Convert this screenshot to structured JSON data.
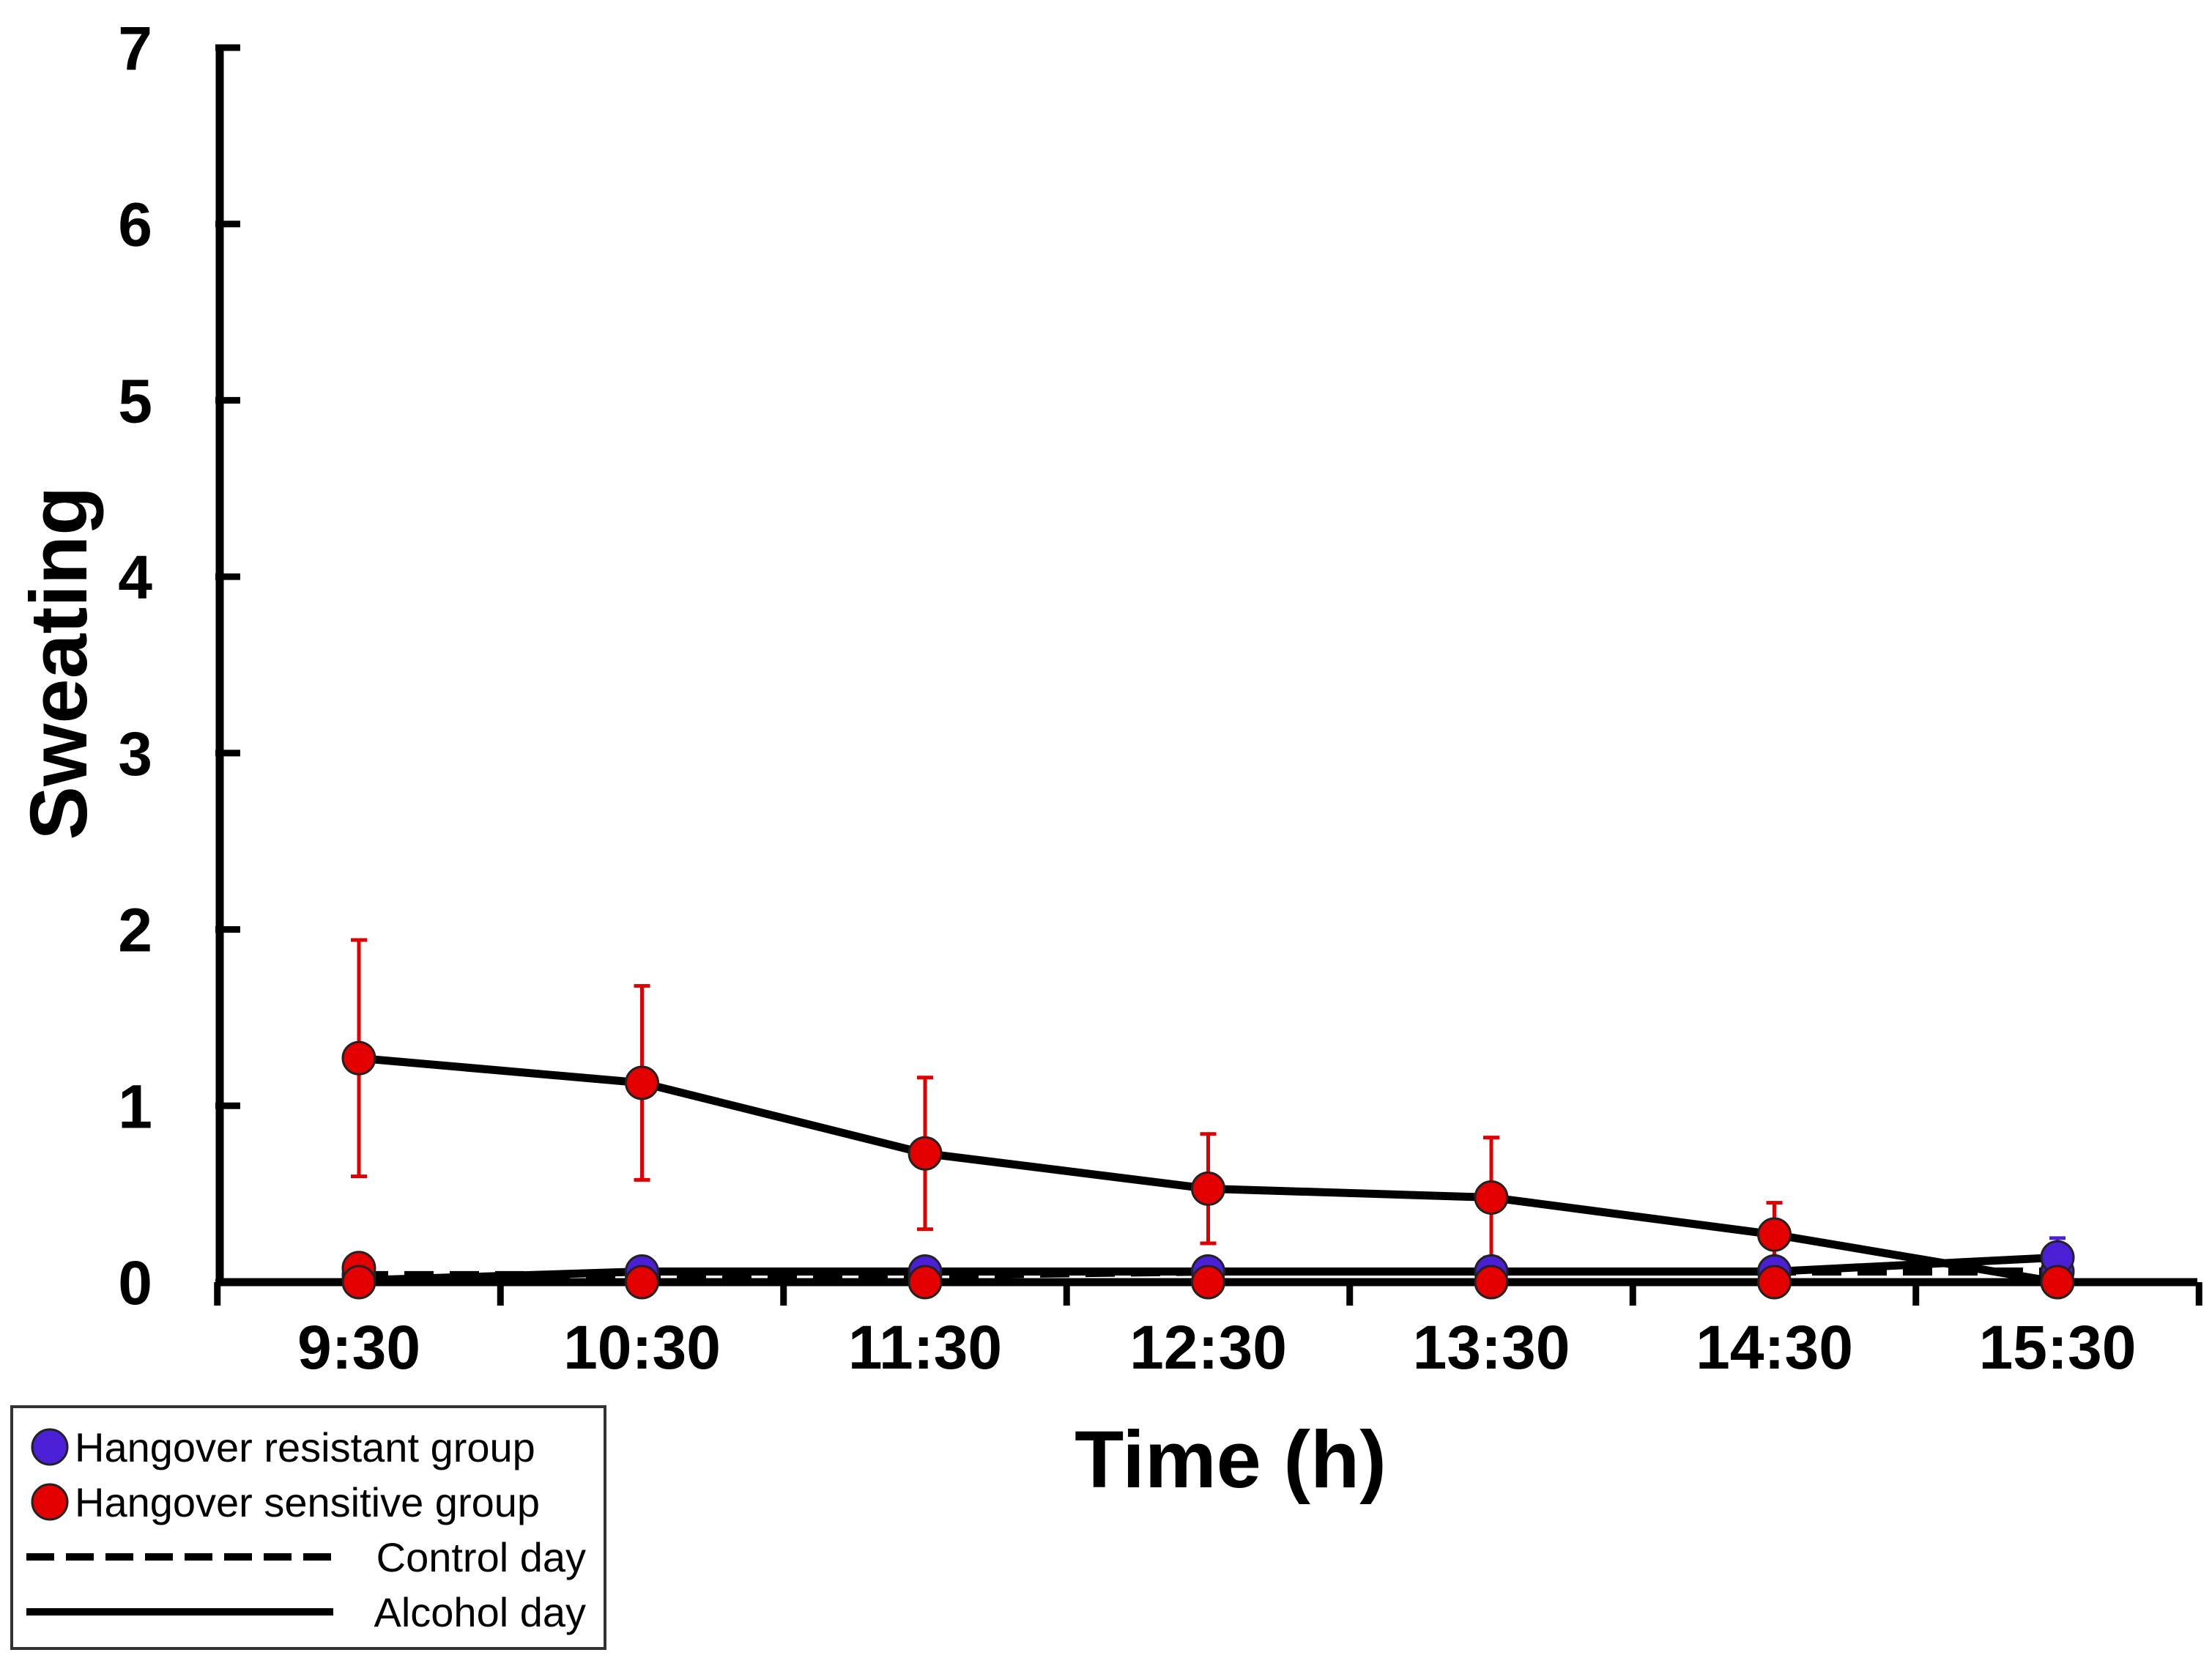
{
  "chart_data": {
    "type": "line",
    "title": "",
    "xlabel": "Time (h)",
    "ylabel": "Sweating",
    "categories": [
      "9:30",
      "10:30",
      "11:30",
      "12:30",
      "13:30",
      "14:30",
      "15:30"
    ],
    "ylim": [
      0,
      7
    ],
    "yticks": [
      "0",
      "1",
      "2",
      "3",
      "4",
      "5",
      "6",
      "7"
    ],
    "grid": false,
    "legend_position": "bottom-left",
    "series": [
      {
        "name": "Hangover resistant group",
        "day": "Control day",
        "line_style": "dashed",
        "marker_color": "#4a1fd6",
        "values": [
          0.04,
          0.04,
          0.04,
          0.06,
          0.06,
          0.06,
          0.06
        ],
        "error": [
          0,
          0,
          0,
          0,
          0,
          0,
          0
        ]
      },
      {
        "name": "Hangover resistant group",
        "day": "Alcohol day",
        "line_style": "solid",
        "marker_color": "#4a1fd6",
        "values": [
          0.01,
          0.06,
          0.06,
          0.06,
          0.06,
          0.06,
          0.14
        ],
        "error": [
          0,
          0,
          0,
          0,
          0,
          0,
          0.11
        ]
      },
      {
        "name": "Hangover sensitive group",
        "day": "Control day",
        "line_style": "dashed",
        "marker_color": "#e50000",
        "values": [
          0.0,
          0.0,
          0.0,
          0.0,
          0.0,
          0.0,
          0.0
        ],
        "error": [
          0,
          0,
          0,
          0,
          0,
          0,
          0
        ]
      },
      {
        "name": "Hangover sensitive group",
        "day": "Alcohol day",
        "line_style": "solid",
        "marker_color": "#e50000",
        "values": [
          1.27,
          1.13,
          0.73,
          0.53,
          0.48,
          0.27,
          0.0
        ],
        "error": [
          0.67,
          0.55,
          0.43,
          0.31,
          0.34,
          0.18,
          0
        ]
      },
      {
        "name": "Hangover sensitive group",
        "day": "Control day",
        "line_style": "none",
        "marker_color": "#e50000",
        "values": [
          0.08,
          null,
          null,
          null,
          null,
          null,
          null
        ],
        "error": [
          0,
          0,
          0,
          0,
          0,
          0,
          0
        ]
      }
    ],
    "legend": [
      {
        "label": "Hangover resistant group",
        "kind": "marker",
        "color": "#4a1fd6"
      },
      {
        "label": "Hangover sensitive group",
        "kind": "marker",
        "color": "#e50000"
      },
      {
        "label": "Control day",
        "kind": "dashed"
      },
      {
        "label": "Alcohol day",
        "kind": "solid"
      }
    ],
    "colors": {
      "error_bar": "#e00000",
      "line": "#000000",
      "axis": "#000000",
      "legend_border": "#333333"
    }
  }
}
